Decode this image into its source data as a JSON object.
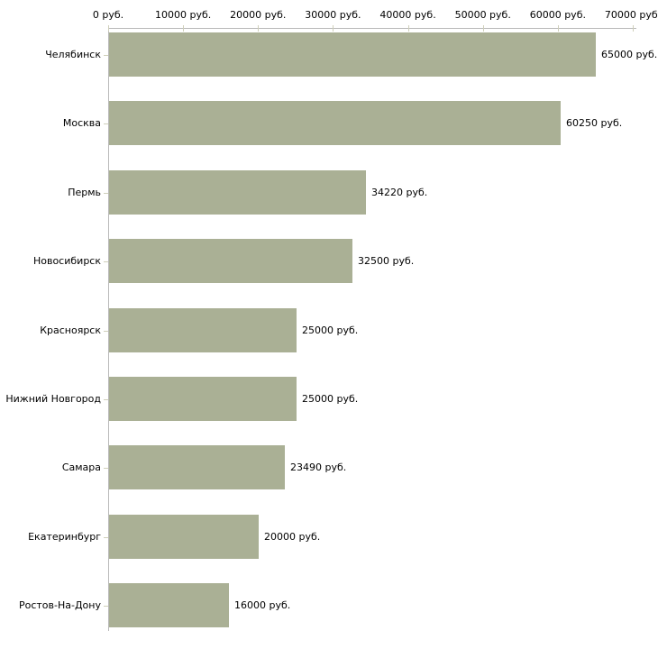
{
  "chart_data": {
    "type": "bar",
    "orientation": "horizontal",
    "title": "",
    "xlabel": "",
    "ylabel": "",
    "unit": "руб.",
    "categories": [
      "Челябинск",
      "Москва",
      "Пермь",
      "Новосибирск",
      "Красноярск",
      "Нижний Новгород",
      "Самара",
      "Екатеринбург",
      "Ростов-На-Дону"
    ],
    "values": [
      65000,
      60250,
      34220,
      32500,
      25000,
      25000,
      23490,
      20000,
      16000
    ],
    "value_labels": [
      "65000 руб.",
      "60250 руб.",
      "34220 руб.",
      "32500 руб.",
      "25000 руб.",
      "25000 руб.",
      "23490 руб.",
      "20000 руб.",
      "16000 руб."
    ],
    "x_axis": {
      "position": "top",
      "range": [
        0,
        70000
      ],
      "ticks": [
        0,
        10000,
        20000,
        30000,
        40000,
        50000,
        60000,
        70000
      ],
      "tick_labels": [
        "0 руб.",
        "10000 руб.",
        "20000 руб.",
        "30000 руб.",
        "40000 руб.",
        "50000 руб.",
        "60000 руб.",
        "70000 руб."
      ]
    },
    "grid": false,
    "legend": false,
    "colors": {
      "bar": "#aab095",
      "axis_line": "#b9b9b9",
      "tick": "#cfcfba",
      "text": "#000000",
      "background": "#ffffff"
    }
  }
}
